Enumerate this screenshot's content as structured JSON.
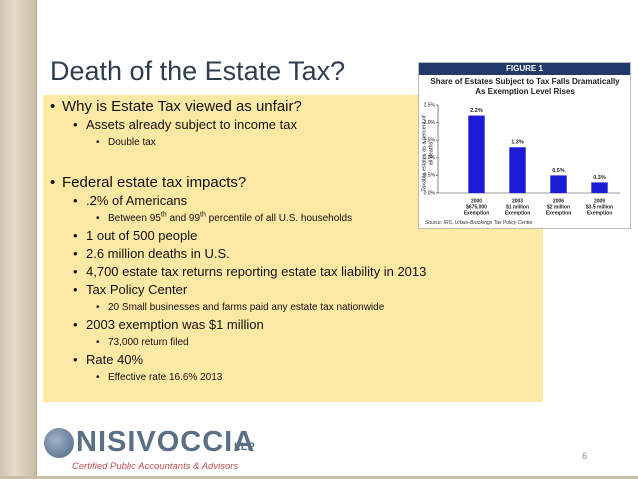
{
  "title": "Death of the Estate Tax?",
  "body": [
    {
      "text": "Why is Estate Tax viewed as unfair?",
      "items": [
        {
          "text": "Assets already subject to income tax",
          "items": [
            {
              "text": "Double tax"
            }
          ]
        }
      ]
    },
    {
      "text": "Federal estate tax impacts?",
      "items": [
        {
          "text": ".2% of Americans",
          "items": [
            {
              "parts": [
                {
                  "text": "Between 95"
                },
                {
                  "sup": "th"
                },
                {
                  "text": " and 99"
                },
                {
                  "sup": "th"
                },
                {
                  "text": " percentile of all U.S. households"
                }
              ]
            }
          ]
        },
        {
          "text": "1 out of 500 people"
        },
        {
          "text": "2.6 million deaths in U.S."
        },
        {
          "text": "4,700 estate tax returns reporting estate tax liability in 2013"
        },
        {
          "text": "Tax Policy Center",
          "items": [
            {
              "text": "20 Small businesses and farms paid any estate tax nationwide"
            }
          ]
        },
        {
          "text": "2003 exemption was $1 million",
          "items": [
            {
              "text": "73,000 return filed"
            }
          ]
        },
        {
          "text": "Rate 40%",
          "items": [
            {
              "text": "Effective rate 16.6% 2013"
            }
          ]
        }
      ]
    }
  ],
  "figure": {
    "label": "FIGURE 1",
    "source": "Source: IRS, Urban-Brookings Tax Policy Center",
    "chart_data": {
      "type": "bar",
      "title": "Share of Estates Subject to Tax Falls Dramatically As Exemption Level Rises",
      "y_label": "Taxable estates as a percent of all deaths",
      "categories": [
        [
          "2000",
          "$675,000",
          "Exemption"
        ],
        [
          "2003",
          "$1 million",
          "Exemption"
        ],
        [
          "2006",
          "$2 million",
          "Exemption"
        ],
        [
          "2009",
          "$3.5 million",
          "Exemption"
        ]
      ],
      "values": [
        2.2,
        1.3,
        0.5,
        0.3
      ],
      "value_labels": [
        "2.2%",
        "1.3%",
        "0.5%",
        "0.3%"
      ],
      "color": "#1b1bd6",
      "ylim": [
        0,
        2.5
      ],
      "yticks": [
        {
          "value": 0,
          "label": "0.0%"
        },
        {
          "value": 0.5,
          "label": "0.5%"
        },
        {
          "value": 1,
          "label": "1.0%"
        },
        {
          "value": 1.5,
          "label": "1.5%"
        },
        {
          "value": 2,
          "label": "2.0%"
        },
        {
          "value": 2.5,
          "label": "2.5%"
        }
      ]
    }
  },
  "logo": {
    "name": "NISIVOCCIA",
    "suffix": "LLP",
    "tagline": "Certified Public Accountants & Advisors"
  },
  "page_number": "6"
}
